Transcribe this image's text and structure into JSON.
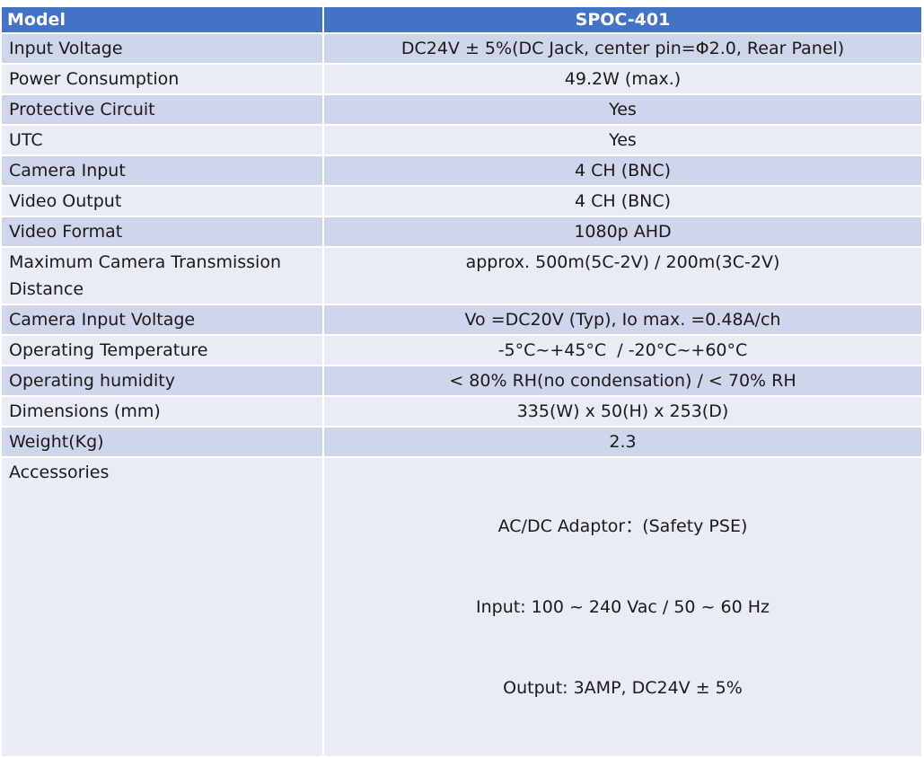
{
  "header": {
    "label": "Model",
    "value": "SPOC-401"
  },
  "rows": [
    {
      "label": "Input Voltage",
      "value": "DC24V ± 5%(DC Jack, center pin=Φ2.0, Rear Panel)"
    },
    {
      "label": "Power Consumption",
      "value": "49.2W (max.)"
    },
    {
      "label": "Protective Circuit",
      "value": "Yes"
    },
    {
      "label": "UTC",
      "value": "Yes"
    },
    {
      "label": "Camera Input",
      "value": "4 CH (BNC)"
    },
    {
      "label": "Video Output",
      "value": "4 CH (BNC)"
    },
    {
      "label": "Video Format",
      "value": "1080p AHD"
    },
    {
      "label_lines": [
        "Maximum Camera Transmission",
        "Distance"
      ],
      "value": "approx. 500m(5C-2V) / 200m(3C-2V)"
    },
    {
      "label": "Camera Input Voltage",
      "value": "Vo =DC20V (Typ), Io max. =0.48A/ch"
    },
    {
      "label": "Operating Temperature",
      "value": "-5°C~+45°C  / -20°C~+60°C"
    },
    {
      "label": "Operating humidity",
      "value": "< 80% RH(no condensation) / < 70% RH"
    },
    {
      "label": "Dimensions (mm)",
      "value": "335(W) x 50(H) x 253(D)"
    },
    {
      "label": "Weight(Kg)",
      "value": "2.3"
    },
    {
      "label": "Accessories",
      "value_lines": [
        "AC/DC Adaptor：(Safety PSE)",
        "Input: 100 ~ 240 Vac / 50 ~ 60 Hz",
        "Output: 3AMP, DC24V ± 5%"
      ]
    }
  ],
  "colors": {
    "header": "#4472c4",
    "row_dark": "#cfd5ea",
    "row_light": "#e9ebf5"
  }
}
